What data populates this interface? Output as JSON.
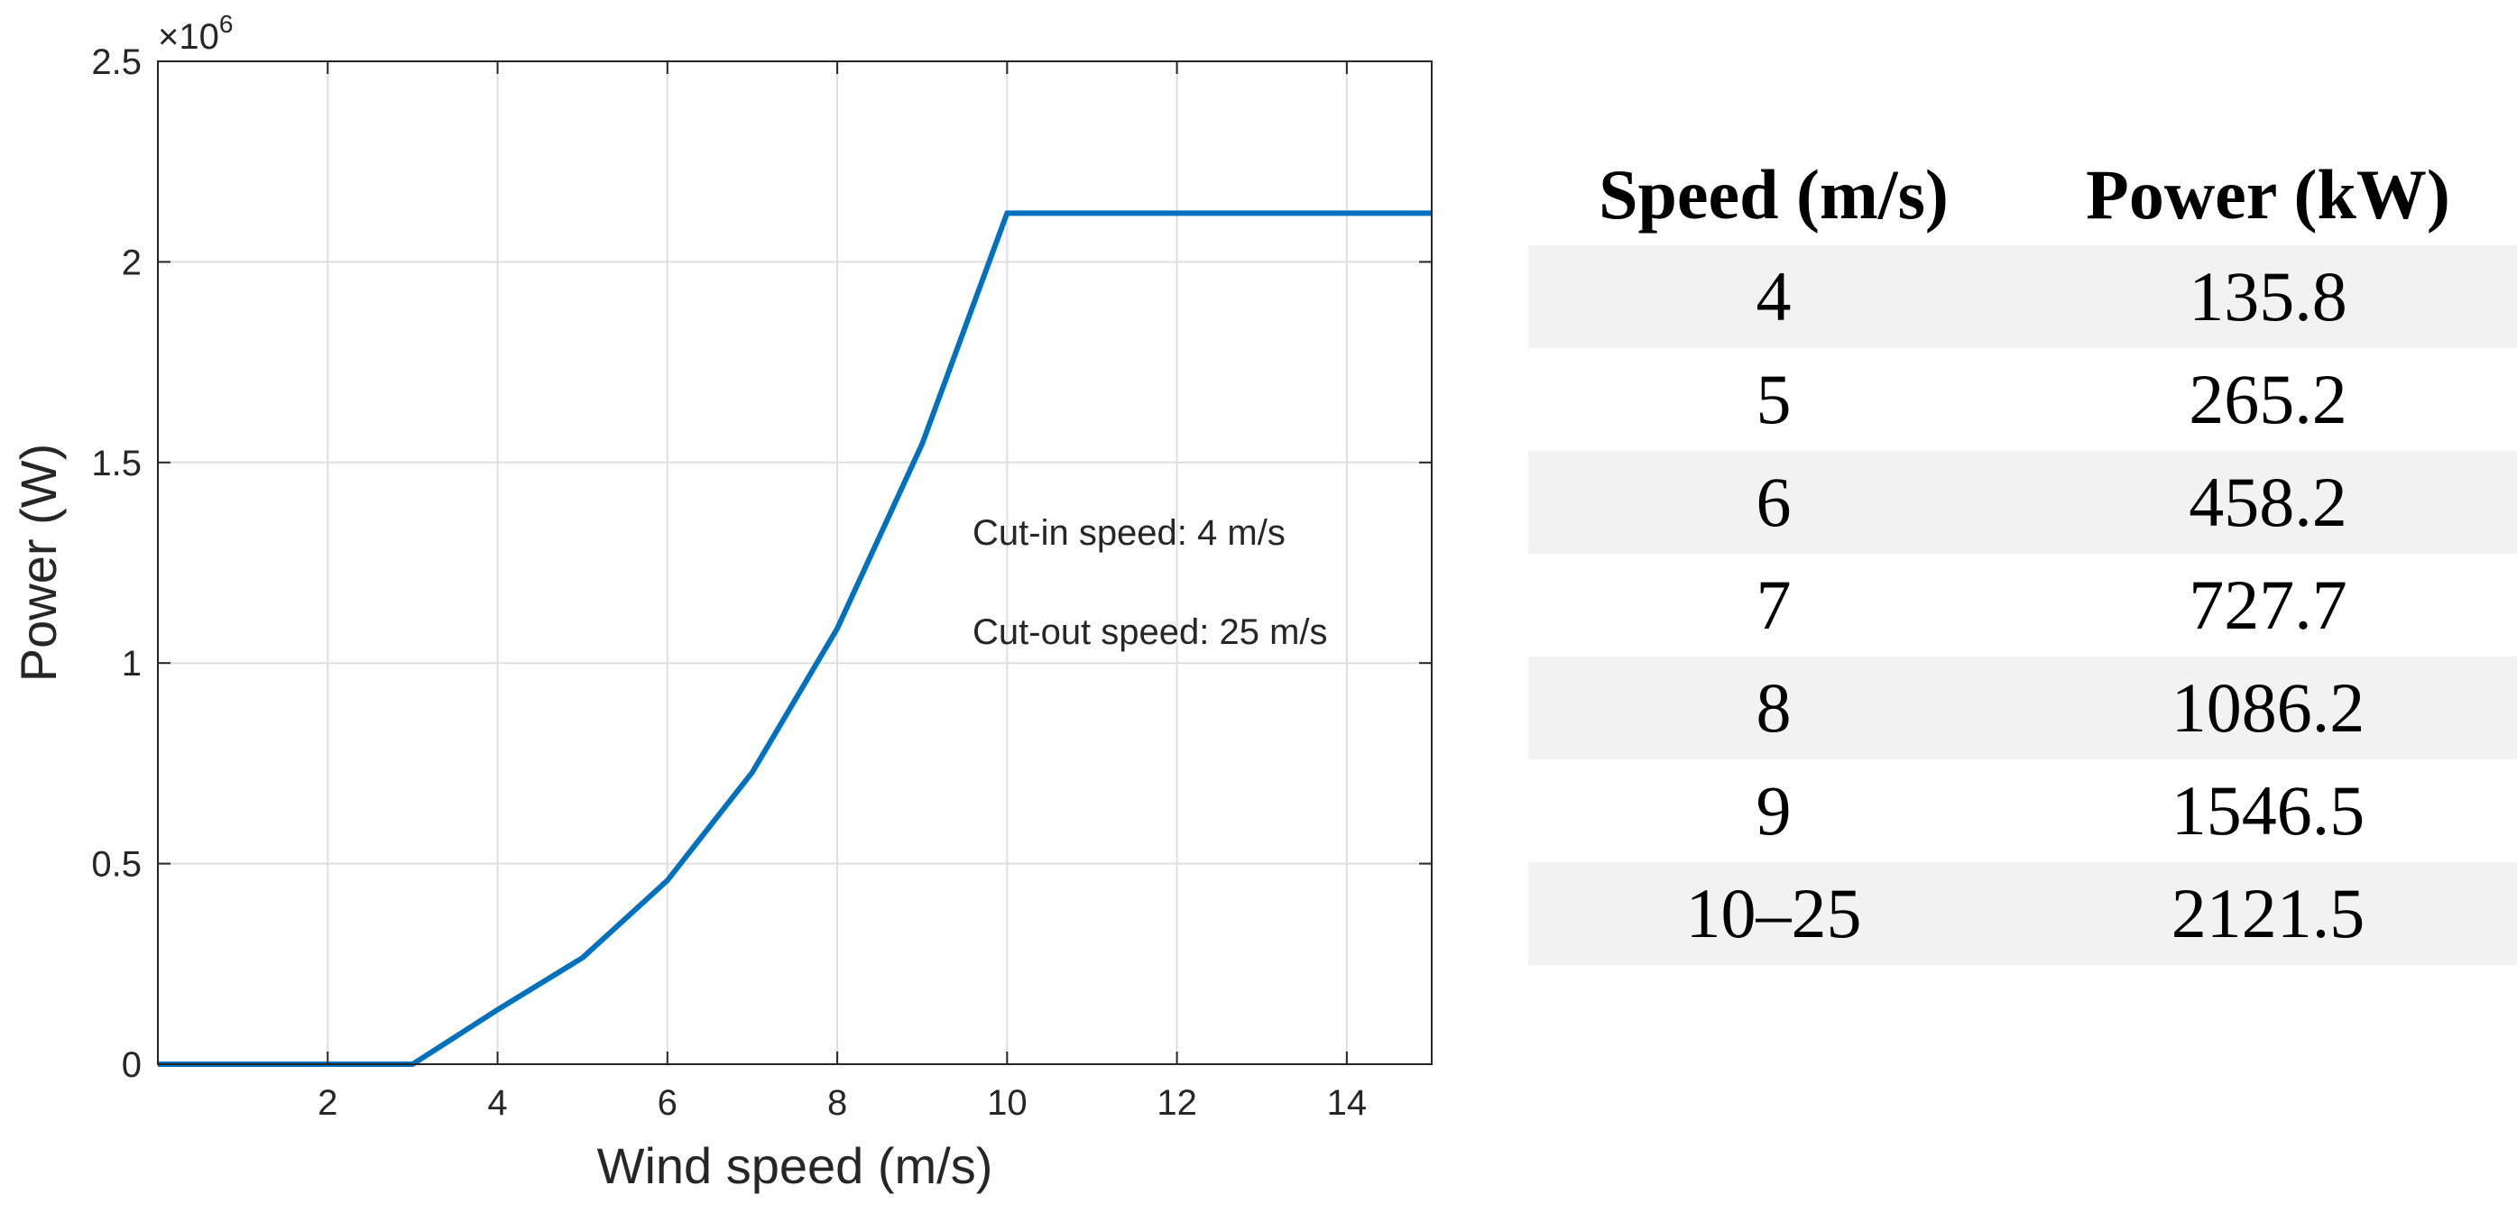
{
  "chart_data": {
    "type": "line",
    "title": "",
    "xlabel": "Wind speed (m/s)",
    "ylabel": "Power (W)",
    "xlim": [
      0,
      15
    ],
    "ylim": [
      0,
      2500000
    ],
    "xticks": [
      2,
      4,
      6,
      8,
      10,
      12,
      14
    ],
    "yticks": [
      0,
      500000,
      1000000,
      1500000,
      2000000,
      2500000
    ],
    "ytick_labels": [
      "0",
      "0.5",
      "1",
      "1.5",
      "2",
      "2.5"
    ],
    "y_multiplier": {
      "base": "×10",
      "exponent": "6"
    },
    "grid": true,
    "series": [
      {
        "color": "#0072BD",
        "x": [
          0,
          3,
          4,
          5,
          6,
          7,
          8,
          9,
          10,
          15
        ],
        "y": [
          0,
          0,
          135800,
          265200,
          458200,
          727700,
          1086200,
          1546500,
          2121500,
          2121500
        ]
      }
    ],
    "annotations": [
      "Cut-in speed: 4 m/s",
      "Cut-out speed: 25 m/s"
    ]
  },
  "table": {
    "headers": [
      "Speed (m/s)",
      "Power (kW)"
    ],
    "rows": [
      [
        "4",
        "135.8"
      ],
      [
        "5",
        "265.2"
      ],
      [
        "6",
        "458.2"
      ],
      [
        "7",
        "727.7"
      ],
      [
        "8",
        "1086.2"
      ],
      [
        "9",
        "1546.5"
      ],
      [
        "10–25",
        "2121.5"
      ]
    ]
  }
}
